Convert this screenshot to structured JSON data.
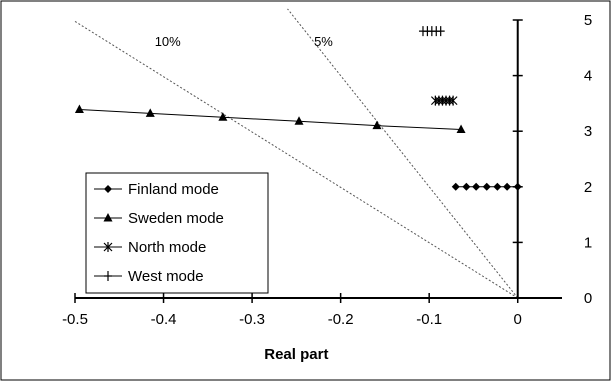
{
  "chart_data": {
    "type": "scatter",
    "title": "",
    "xlabel": "Real part",
    "ylabel": "",
    "xlim": [
      -0.5,
      0.05
    ],
    "ylim": [
      0,
      5
    ],
    "x_ticks": [
      -0.5,
      -0.4,
      -0.3,
      -0.2,
      -0.1,
      0
    ],
    "x_tick_labels": [
      "-0.5",
      "-0.4",
      "-0.3",
      "-0.2",
      "-0.1",
      "0"
    ],
    "y_ticks": [
      0,
      1,
      2,
      3,
      4,
      5
    ],
    "y_tick_labels": [
      "0",
      "1",
      "2",
      "3",
      "4",
      "5"
    ],
    "grid": false,
    "legend_position": "bottom-left",
    "series": [
      {
        "name": "Finland mode",
        "marker": "diamond",
        "connected": true,
        "x": [
          -0.07,
          -0.058,
          -0.047,
          -0.035,
          -0.023,
          -0.012,
          0.0
        ],
        "y": [
          2.0,
          2.0,
          2.0,
          2.0,
          2.0,
          2.0,
          2.0
        ]
      },
      {
        "name": "Sweden mode",
        "marker": "triangle",
        "connected": true,
        "x": [
          -0.495,
          -0.415,
          -0.333,
          -0.247,
          -0.159,
          -0.064
        ],
        "y": [
          3.39,
          3.32,
          3.25,
          3.18,
          3.1,
          3.03
        ]
      },
      {
        "name": "North mode",
        "marker": "asterisk",
        "connected": true,
        "x": [
          -0.093,
          -0.089,
          -0.085,
          -0.081,
          -0.077,
          -0.073
        ],
        "y": [
          3.55,
          3.55,
          3.55,
          3.55,
          3.55,
          3.55
        ]
      },
      {
        "name": "West mode",
        "marker": "plus",
        "connected": true,
        "x": [
          -0.107,
          -0.102,
          -0.097,
          -0.092,
          -0.087
        ],
        "y": [
          4.8,
          4.8,
          4.8,
          4.8,
          4.8
        ]
      }
    ],
    "damping_lines": [
      {
        "label": "10%",
        "label_x": -0.41,
        "label_y": 4.62,
        "from": [
          0,
          0
        ],
        "to": [
          -0.5,
          4.975
        ]
      },
      {
        "label": "5%",
        "label_x": -0.23,
        "label_y": 4.62,
        "from": [
          0,
          0
        ],
        "to": [
          -0.26,
          5.2
        ]
      }
    ],
    "colors": {
      "axis": "#000000",
      "series": "#000000",
      "damping_line": "#555555",
      "border": "#000000"
    }
  }
}
